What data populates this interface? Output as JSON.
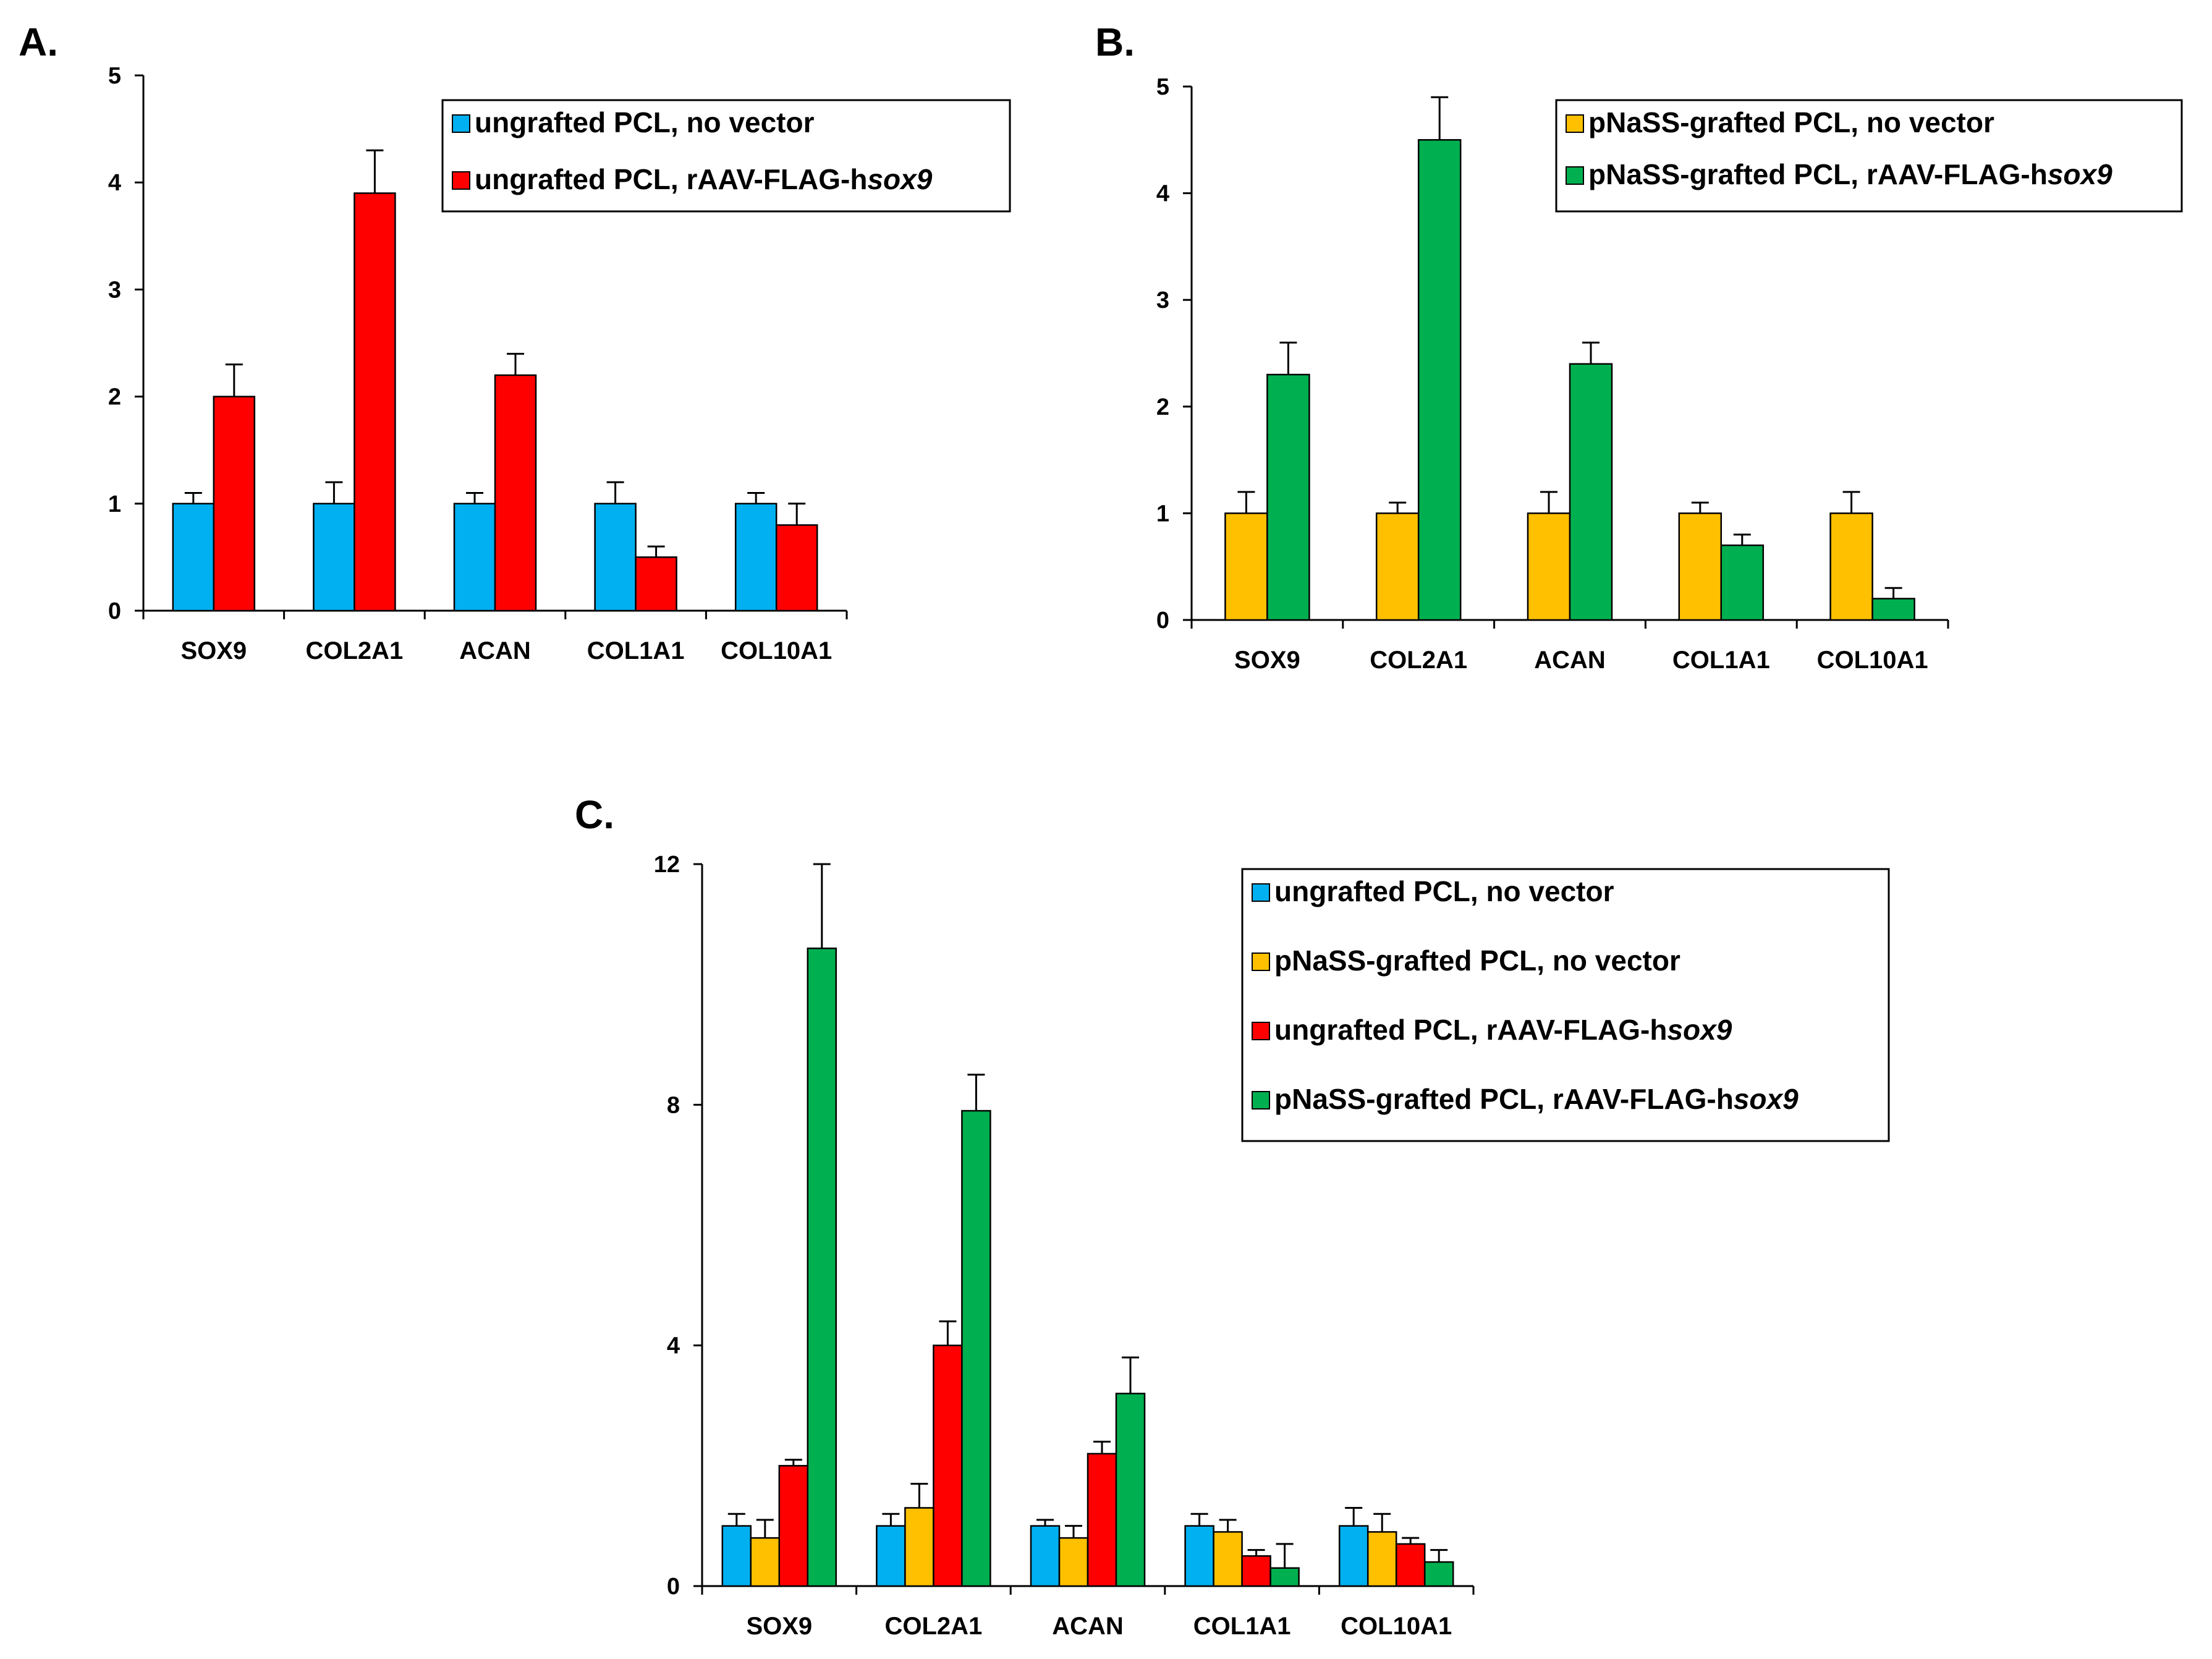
{
  "chart_data": [
    {
      "panel": "A.",
      "type": "bar",
      "categories": [
        "SOX9",
        "COL2A1",
        "ACAN",
        "COL1A1",
        "COL10A1"
      ],
      "ylim": [
        0,
        5
      ],
      "yticks": [
        "0",
        "1",
        "2",
        "3",
        "4",
        "5"
      ],
      "legend_position": "top-right",
      "series": [
        {
          "name": "ungrafted PCL, no vector",
          "name_parts": [
            "ungrafted PCL, no vector",
            ""
          ],
          "color": "#00B0F0",
          "values": [
            1.0,
            1.0,
            1.0,
            1.0,
            1.0
          ],
          "errors": [
            0.1,
            0.2,
            0.1,
            0.2,
            0.1
          ]
        },
        {
          "name": "ungrafted PCL, rAAV-FLAG-hsox9",
          "name_parts": [
            "ungrafted PCL, rAAV-FLAG-h",
            "sox9"
          ],
          "color": "#FF0000",
          "values": [
            2.0,
            3.9,
            2.2,
            0.5,
            0.8
          ],
          "errors": [
            0.3,
            0.4,
            0.2,
            0.1,
            0.2
          ]
        }
      ]
    },
    {
      "panel": "B.",
      "type": "bar",
      "categories": [
        "SOX9",
        "COL2A1",
        "ACAN",
        "COL1A1",
        "COL10A1"
      ],
      "ylim": [
        0,
        5
      ],
      "yticks": [
        "0",
        "1",
        "2",
        "3",
        "4",
        "5"
      ],
      "legend_position": "top-right",
      "series": [
        {
          "name": "pNaSS-grafted PCL, no vector",
          "name_parts": [
            "pNaSS-grafted PCL, no vector",
            ""
          ],
          "color": "#FFC000",
          "values": [
            1.0,
            1.0,
            1.0,
            1.0,
            1.0
          ],
          "errors": [
            0.2,
            0.1,
            0.2,
            0.1,
            0.2
          ]
        },
        {
          "name": "pNaSS-grafted PCL, rAAV-FLAG-hsox9",
          "name_parts": [
            "pNaSS-grafted PCL, rAAV-FLAG-h",
            "sox9"
          ],
          "color": "#00B050",
          "values": [
            2.3,
            4.5,
            2.4,
            0.7,
            0.2
          ],
          "errors": [
            0.3,
            0.4,
            0.2,
            0.1,
            0.1
          ]
        }
      ]
    },
    {
      "panel": "C.",
      "type": "bar",
      "categories": [
        "SOX9",
        "COL2A1",
        "ACAN",
        "COL1A1",
        "COL10A1"
      ],
      "ylim": [
        0,
        12
      ],
      "yticks": [
        "0",
        "4",
        "8",
        "12"
      ],
      "legend_position": "top-right",
      "series": [
        {
          "name": "ungrafted PCL, no vector",
          "name_parts": [
            "ungrafted PCL, no vector",
            ""
          ],
          "color": "#00B0F0",
          "values": [
            1.0,
            1.0,
            1.0,
            1.0,
            1.0
          ],
          "errors": [
            0.2,
            0.2,
            0.1,
            0.2,
            0.3
          ]
        },
        {
          "name": "pNaSS-grafted PCL, no vector",
          "name_parts": [
            "pNaSS-grafted PCL, no vector",
            ""
          ],
          "color": "#FFC000",
          "values": [
            0.8,
            1.3,
            0.8,
            0.9,
            0.9
          ],
          "errors": [
            0.3,
            0.4,
            0.2,
            0.2,
            0.3
          ]
        },
        {
          "name": "ungrafted PCL, rAAV-FLAG-hsox9",
          "name_parts": [
            "ungrafted PCL, rAAV-FLAG-h",
            "sox9"
          ],
          "color": "#FF0000",
          "values": [
            2.0,
            4.0,
            2.2,
            0.5,
            0.7
          ],
          "errors": [
            0.1,
            0.4,
            0.2,
            0.1,
            0.1
          ]
        },
        {
          "name": "pNaSS-grafted PCL, rAAV-FLAG-hsox9",
          "name_parts": [
            "pNaSS-grafted PCL, rAAV-FLAG-h",
            "sox9"
          ],
          "color": "#00B050",
          "values": [
            10.6,
            7.9,
            3.2,
            0.3,
            0.4
          ],
          "errors": [
            1.4,
            0.6,
            0.6,
            0.4,
            0.2
          ]
        }
      ]
    }
  ]
}
